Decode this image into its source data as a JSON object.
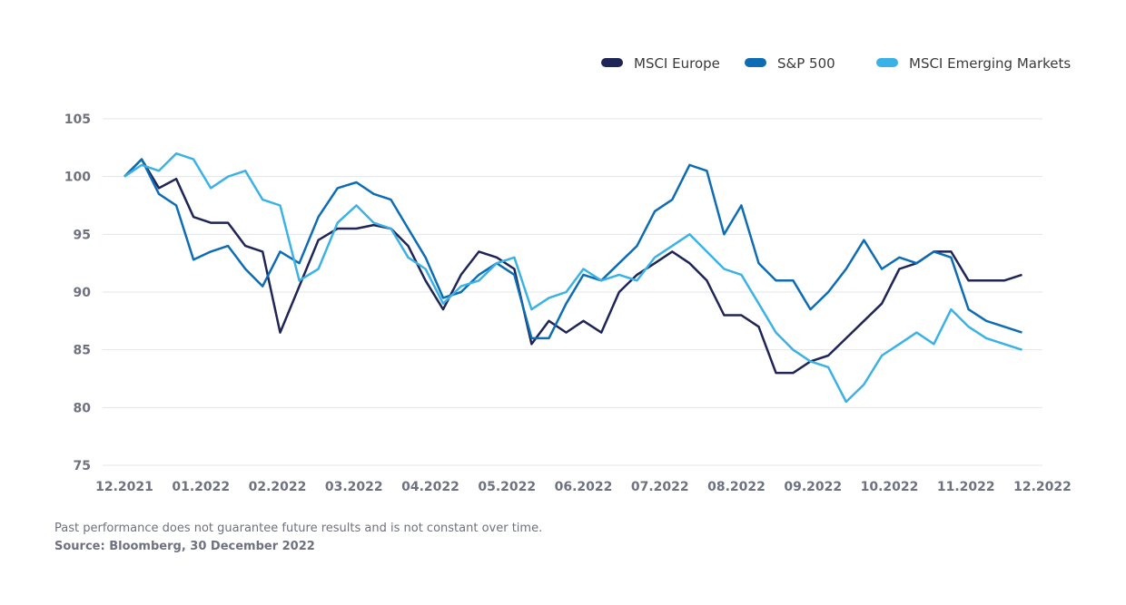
{
  "chart_data": {
    "type": "line",
    "title": "",
    "xlabel": "",
    "ylabel": "",
    "ylim": [
      75,
      105
    ],
    "yticks": [
      75,
      80,
      85,
      90,
      95,
      100,
      105
    ],
    "xtick_labels": [
      "12.2021",
      "01.2022",
      "02.2022",
      "03.2022",
      "04.2022",
      "05.2022",
      "06.2022",
      "07.2022",
      "08.2022",
      "09.2022",
      "10.2022",
      "11.2022",
      "12.2022"
    ],
    "xtick_dates": [
      "2021-12-01",
      "2022-01-01",
      "2022-02-01",
      "2022-03-01",
      "2022-04-01",
      "2022-05-01",
      "2022-06-01",
      "2022-07-01",
      "2022-08-01",
      "2022-09-01",
      "2022-10-01",
      "2022-11-01",
      "2022-12-01"
    ],
    "grid": true,
    "legend_position": "top-right",
    "x": [
      "2021-12-01",
      "2021-12-08",
      "2021-12-15",
      "2021-12-22",
      "2021-12-29",
      "2022-01-05",
      "2022-01-12",
      "2022-01-19",
      "2022-01-26",
      "2022-02-02",
      "2022-02-09",
      "2022-02-16",
      "2022-02-23",
      "2022-03-02",
      "2022-03-09",
      "2022-03-16",
      "2022-03-23",
      "2022-03-30",
      "2022-04-06",
      "2022-04-13",
      "2022-04-20",
      "2022-04-27",
      "2022-05-04",
      "2022-05-11",
      "2022-05-18",
      "2022-05-25",
      "2022-06-01",
      "2022-06-08",
      "2022-06-15",
      "2022-06-22",
      "2022-06-29",
      "2022-07-06",
      "2022-07-13",
      "2022-07-20",
      "2022-07-27",
      "2022-08-03",
      "2022-08-10",
      "2022-08-17",
      "2022-08-24",
      "2022-08-31",
      "2022-09-07",
      "2022-09-14",
      "2022-09-21",
      "2022-09-28",
      "2022-10-05",
      "2022-10-12",
      "2022-10-19",
      "2022-10-26",
      "2022-11-02",
      "2022-11-09",
      "2022-11-16",
      "2022-11-23"
    ],
    "series": [
      {
        "name": "MSCI Europe",
        "color": "#1f2556",
        "values": [
          100,
          101.5,
          99,
          99.8,
          96.5,
          96,
          96,
          94,
          93.5,
          86.5,
          90.5,
          94.5,
          95.5,
          95.5,
          95.8,
          95.5,
          94,
          91,
          88.5,
          91.5,
          93.5,
          93,
          92,
          85.5,
          87.5,
          86.5,
          87.5,
          86.5,
          90,
          91.5,
          92.5,
          93.5,
          92.5,
          91,
          88,
          88,
          87,
          83,
          83,
          84,
          84.5,
          86,
          87.5,
          89,
          92,
          92.5,
          93.5,
          93.5,
          91,
          91,
          91,
          91.5
        ]
      },
      {
        "name": "S&P 500",
        "color": "#0e6cb5",
        "values": [
          100,
          101.5,
          98.5,
          97.5,
          92.8,
          93.5,
          94,
          92,
          90.5,
          93.5,
          92.5,
          96.5,
          99,
          99.5,
          98.5,
          98,
          95.5,
          93,
          89.5,
          90,
          91.5,
          92.5,
          91.5,
          86,
          86,
          89,
          91.5,
          91,
          92.5,
          94,
          97,
          98,
          101,
          100.5,
          95,
          97.5,
          92.5,
          91,
          91,
          88.5,
          90,
          92,
          94.5,
          92,
          93,
          92.5,
          93.5,
          93,
          88.5,
          87.5,
          87,
          86.5
        ]
      },
      {
        "name": "MSCI Emerging Markets",
        "color": "#3bb2e6",
        "values": [
          100,
          101,
          100.5,
          102,
          101.5,
          99,
          100,
          100.5,
          98,
          97.5,
          91,
          92,
          96,
          97.5,
          96,
          95.5,
          93,
          92,
          89,
          90.5,
          91,
          92.5,
          93,
          88.5,
          89.5,
          90,
          92,
          91,
          91.5,
          91,
          93,
          94,
          95,
          93.5,
          92,
          91.5,
          89,
          86.5,
          85,
          84,
          83.5,
          80.5,
          82,
          84.5,
          85.5,
          86.5,
          85.5,
          88.5,
          87,
          86,
          85.5,
          85
        ]
      }
    ]
  },
  "footer": {
    "note": "Past performance does not guarantee future results and is not constant over time.",
    "source": "Source: Bloomberg, 30 December 2022"
  }
}
